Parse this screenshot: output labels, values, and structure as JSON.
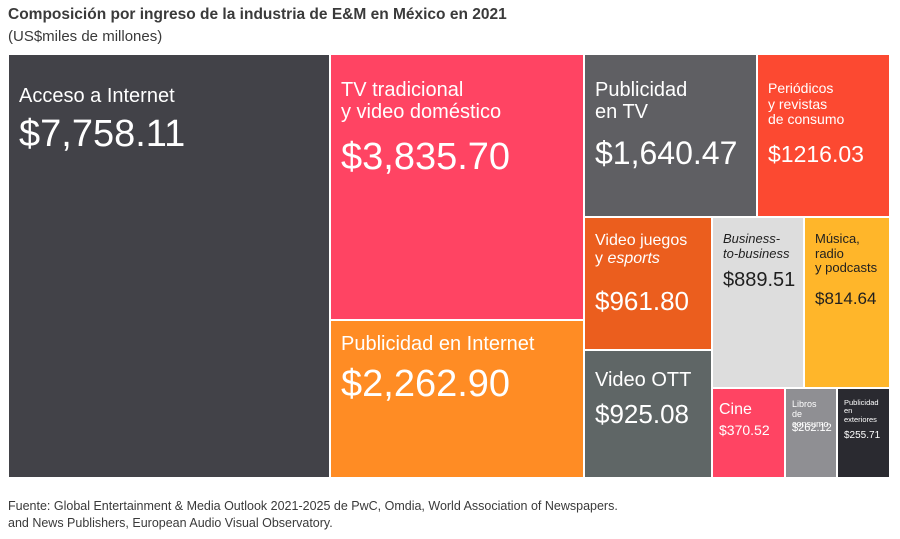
{
  "title": "Composición por ingreso de la industria de E&M en México en 2021",
  "subtitle": "(US$miles de millones)",
  "footer": {
    "line1": "Fuente: Global Entertainment & Media Outlook 2021-2025 de PwC, Omdia, World Association of Newspapers.",
    "line2": "and News Publishers, European Audio Visual Observatory."
  },
  "chart_data": {
    "type": "treemap",
    "title": "Composición por ingreso de la industria de E&M en México en 2021",
    "subtitle": "(US$miles de millones)",
    "segments": [
      {
        "label": "Acceso a Internet",
        "value": 7758.11,
        "value_label": "$7,758.11",
        "color": "#424248"
      },
      {
        "label": "TV tradicional y video doméstico",
        "value": 3835.7,
        "value_label": "$3,835.70",
        "color": "#FF4463"
      },
      {
        "label": "Publicidad en Internet",
        "value": 2262.9,
        "value_label": "$2,262.90",
        "color": "#FF8C24"
      },
      {
        "label": "Publicidad en TV",
        "value": 1640.47,
        "value_label": "$1,640.47",
        "color": "#5F5F63"
      },
      {
        "label": "Periódicos y revistas de consumo",
        "value": 1216.03,
        "value_label": "$1216.03",
        "color": "#FC4931"
      },
      {
        "label": "Video juegos y esports",
        "value": 961.8,
        "value_label": "$961.80",
        "color": "#EB5E1E"
      },
      {
        "label": "Video OTT",
        "value": 925.08,
        "value_label": "$925.08",
        "color": "#5F6666"
      },
      {
        "label": "Business-to-business",
        "value": 889.51,
        "value_label": "$889.51",
        "color": "#DDDDDD"
      },
      {
        "label": "Música, radio y podcasts",
        "value": 814.64,
        "value_label": "$814.64",
        "color": "#FFB62A"
      },
      {
        "label": "Cine",
        "value": 370.52,
        "value_label": "$370.52",
        "color": "#FF4463"
      },
      {
        "label": "Libros de consumo",
        "value": 262.12,
        "value_label": "$262.12",
        "color": "#8F8F93"
      },
      {
        "label": "Publicidad en exteriores",
        "value": 255.71,
        "value_label": "$255.71",
        "color": "#2A2A30"
      }
    ]
  }
}
